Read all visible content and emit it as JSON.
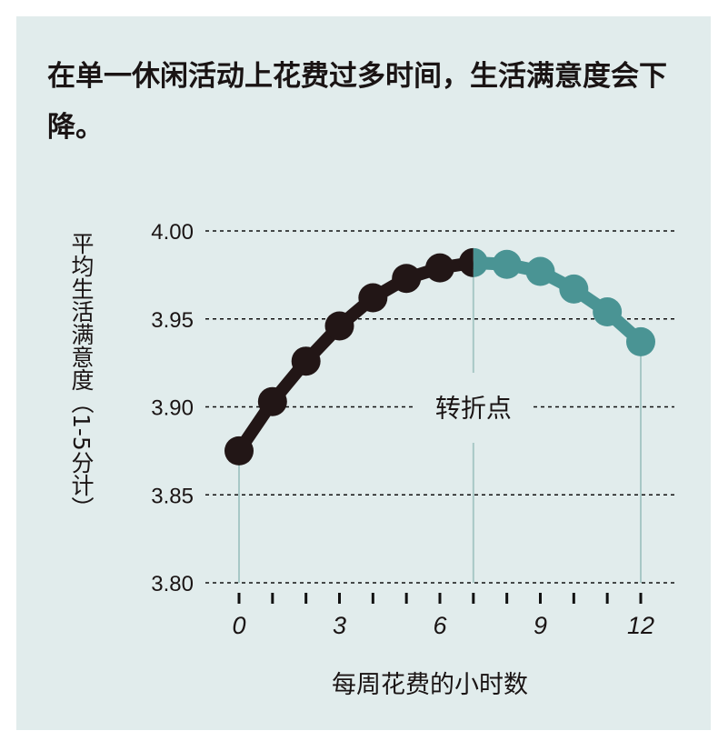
{
  "chart_data": {
    "type": "line",
    "title": "在单一休闲活动上花费过多时间，生活满意度会下降。",
    "xlabel": "每周花费的小时数",
    "ylabel": "平均生活满意度（1-5分计）",
    "x": [
      0,
      1,
      2,
      3,
      4,
      5,
      6,
      7,
      8,
      9,
      10,
      11,
      12
    ],
    "series": [
      {
        "values": [
          3.875,
          3.903,
          3.926,
          3.946,
          3.962,
          3.973,
          3.979,
          3.982,
          3.981,
          3.977,
          3.967,
          3.954,
          3.937
        ]
      }
    ],
    "xlim": [
      0,
      12
    ],
    "ylim": [
      3.8,
      4.0
    ],
    "xticks": [
      0,
      3,
      6,
      9,
      12
    ],
    "yticks": [
      "3.80",
      "3.85",
      "3.90",
      "3.95",
      "4.00"
    ],
    "grid": "horizontal dashed",
    "annotation": {
      "text": "转折点",
      "x": 7
    },
    "colors": {
      "rising": "#221616",
      "falling": "#4a9494",
      "background": "#e1ecec",
      "guide": "#a8c8c6"
    }
  }
}
